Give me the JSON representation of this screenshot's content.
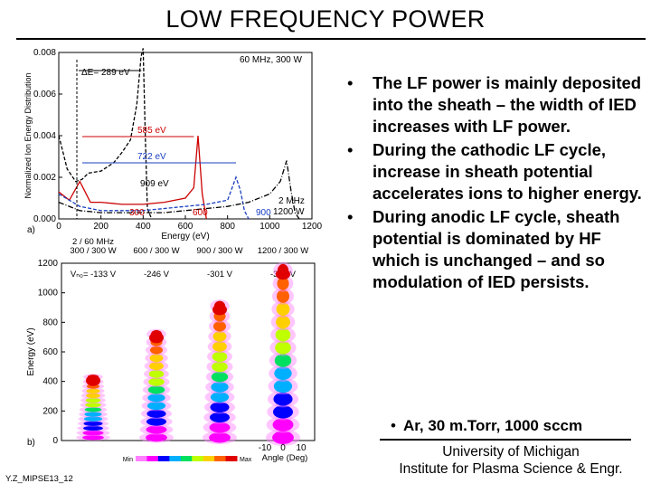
{
  "title": "LOW FREQUENCY POWER",
  "bullets": [
    "The LF power is mainly deposited into the sheath – the width of IED increases with LF power.",
    "During the cathodic LF cycle, increase in sheath potential accelerates ions to higher energy.",
    "During anodic LF cycle, sheath potential is dominated by HF which is unchanged – and so modulation of IED persists."
  ],
  "note": "Ar, 30 m.Torr, 1000 sccm",
  "affiliation": [
    "University of Michigan",
    "Institute for Plasma Science & Engr."
  ],
  "footer": "Y.Z_MIPSE13_12",
  "chart_data": [
    {
      "type": "line",
      "panel": "a)",
      "ylabel": "Normalized Ion Energy Distribution",
      "xlabel": "Energy (eV)",
      "xlim": [
        0,
        1200
      ],
      "ylim": [
        0,
        0.008
      ],
      "xticks": [
        "0",
        "200",
        "400",
        "600",
        "800",
        "1000",
        "1200"
      ],
      "yticks": [
        "0.000",
        "0.002",
        "0.004",
        "0.006",
        "0.008"
      ],
      "annotations": [
        "60 MHz, 300 W",
        "ΔE= 289 eV",
        "585 eV",
        "722 eV",
        "909 eV",
        "300",
        "600",
        "900",
        "2 MHz",
        "1200 W"
      ],
      "series": [
        {
          "color": "#000000",
          "style": "dashed",
          "x": [
            0,
            20,
            40,
            80,
            110,
            140,
            200,
            260,
            300,
            340,
            370,
            390,
            400,
            410,
            420,
            440
          ],
          "y": [
            0.004,
            0.0032,
            0.0024,
            0.0018,
            0.0019,
            0.0022,
            0.0023,
            0.0027,
            0.0032,
            0.0038,
            0.0055,
            0.0078,
            0.0082,
            0.004,
            0.0005,
            0
          ]
        },
        {
          "color": "#cc0000",
          "style": "solid",
          "x": [
            0,
            50,
            100,
            150,
            200,
            300,
            400,
            500,
            600,
            640,
            660,
            680,
            700
          ],
          "y": [
            0.0013,
            0.0009,
            0.0018,
            0.0008,
            0.0008,
            0.0007,
            0.0007,
            0.0008,
            0.001,
            0.0015,
            0.004,
            0.0012,
            0
          ]
        },
        {
          "color": "#1a3fc0",
          "style": "dashed",
          "x": [
            0,
            100,
            200,
            300,
            400,
            500,
            600,
            700,
            800,
            840,
            860,
            880,
            900
          ],
          "y": [
            0.0012,
            0.0006,
            0.0004,
            0.0004,
            0.0004,
            0.0005,
            0.0006,
            0.0007,
            0.0009,
            0.002,
            0.0014,
            0.0004,
            0
          ]
        },
        {
          "color": "#000000",
          "style": "dashdot",
          "x": [
            0,
            100,
            200,
            300,
            400,
            500,
            600,
            700,
            800,
            900,
            1000,
            1050,
            1080,
            1100,
            1120,
            1140
          ],
          "y": [
            0.0008,
            0.0004,
            0.0003,
            0.0003,
            0.0003,
            0.0003,
            0.0004,
            0.0005,
            0.0006,
            0.0008,
            0.0012,
            0.0018,
            0.0028,
            0.0014,
            0.0003,
            0
          ]
        }
      ]
    },
    {
      "type": "heatmap",
      "panel": "b)",
      "ylabel": "Energy (eV)",
      "xlabel": "Angle (Deg)",
      "ylim": [
        0,
        1200
      ],
      "yticks": [
        "0",
        "200",
        "400",
        "600",
        "800",
        "1000",
        "1200"
      ],
      "xticks": [
        "-10",
        "0",
        "10"
      ],
      "colorbar": [
        "Min",
        "Max"
      ],
      "columns": [
        {
          "header": [
            "2 / 60 MHz",
            "300 / 300 W"
          ],
          "vdc": "Vₙ₀= -133 V",
          "emax": 430
        },
        {
          "header": [
            "600 / 300 W"
          ],
          "vdc": "-246 V",
          "emax": 720
        },
        {
          "header": [
            "900 / 300 W"
          ],
          "vdc": "-301 V",
          "emax": 910
        },
        {
          "header": [
            "1200 / 300 W"
          ],
          "vdc": "-380 V",
          "emax": 1150
        }
      ]
    }
  ]
}
